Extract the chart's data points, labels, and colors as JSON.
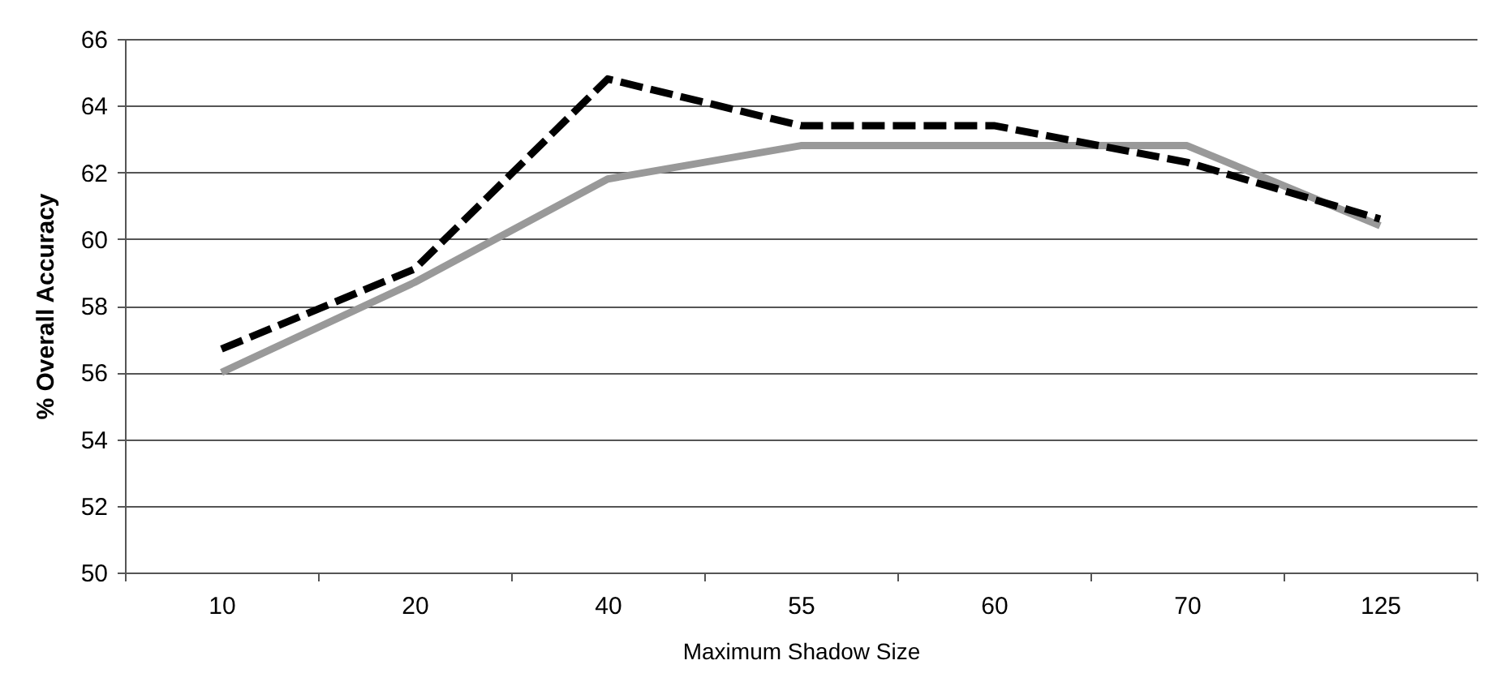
{
  "chart_data": {
    "type": "line",
    "xlabel": "Maximum Shadow Size",
    "ylabel": "% Overall Accuracy",
    "categories": [
      "10",
      "20",
      "40",
      "55",
      "60",
      "70",
      "125"
    ],
    "series": [
      {
        "color": "#000000",
        "line_style": "dashed",
        "values": [
          56.7,
          59.1,
          64.8,
          63.4,
          63.4,
          62.3,
          60.6
        ]
      },
      {
        "color": "#999999",
        "line_style": "solid",
        "values": [
          56.0,
          58.7,
          61.8,
          62.8,
          62.8,
          62.8,
          60.4
        ]
      }
    ],
    "ylim": [
      50,
      66
    ],
    "yticks": [
      50,
      52,
      54,
      56,
      58,
      60,
      62,
      64,
      66
    ],
    "grid": "y",
    "marker": "none"
  }
}
